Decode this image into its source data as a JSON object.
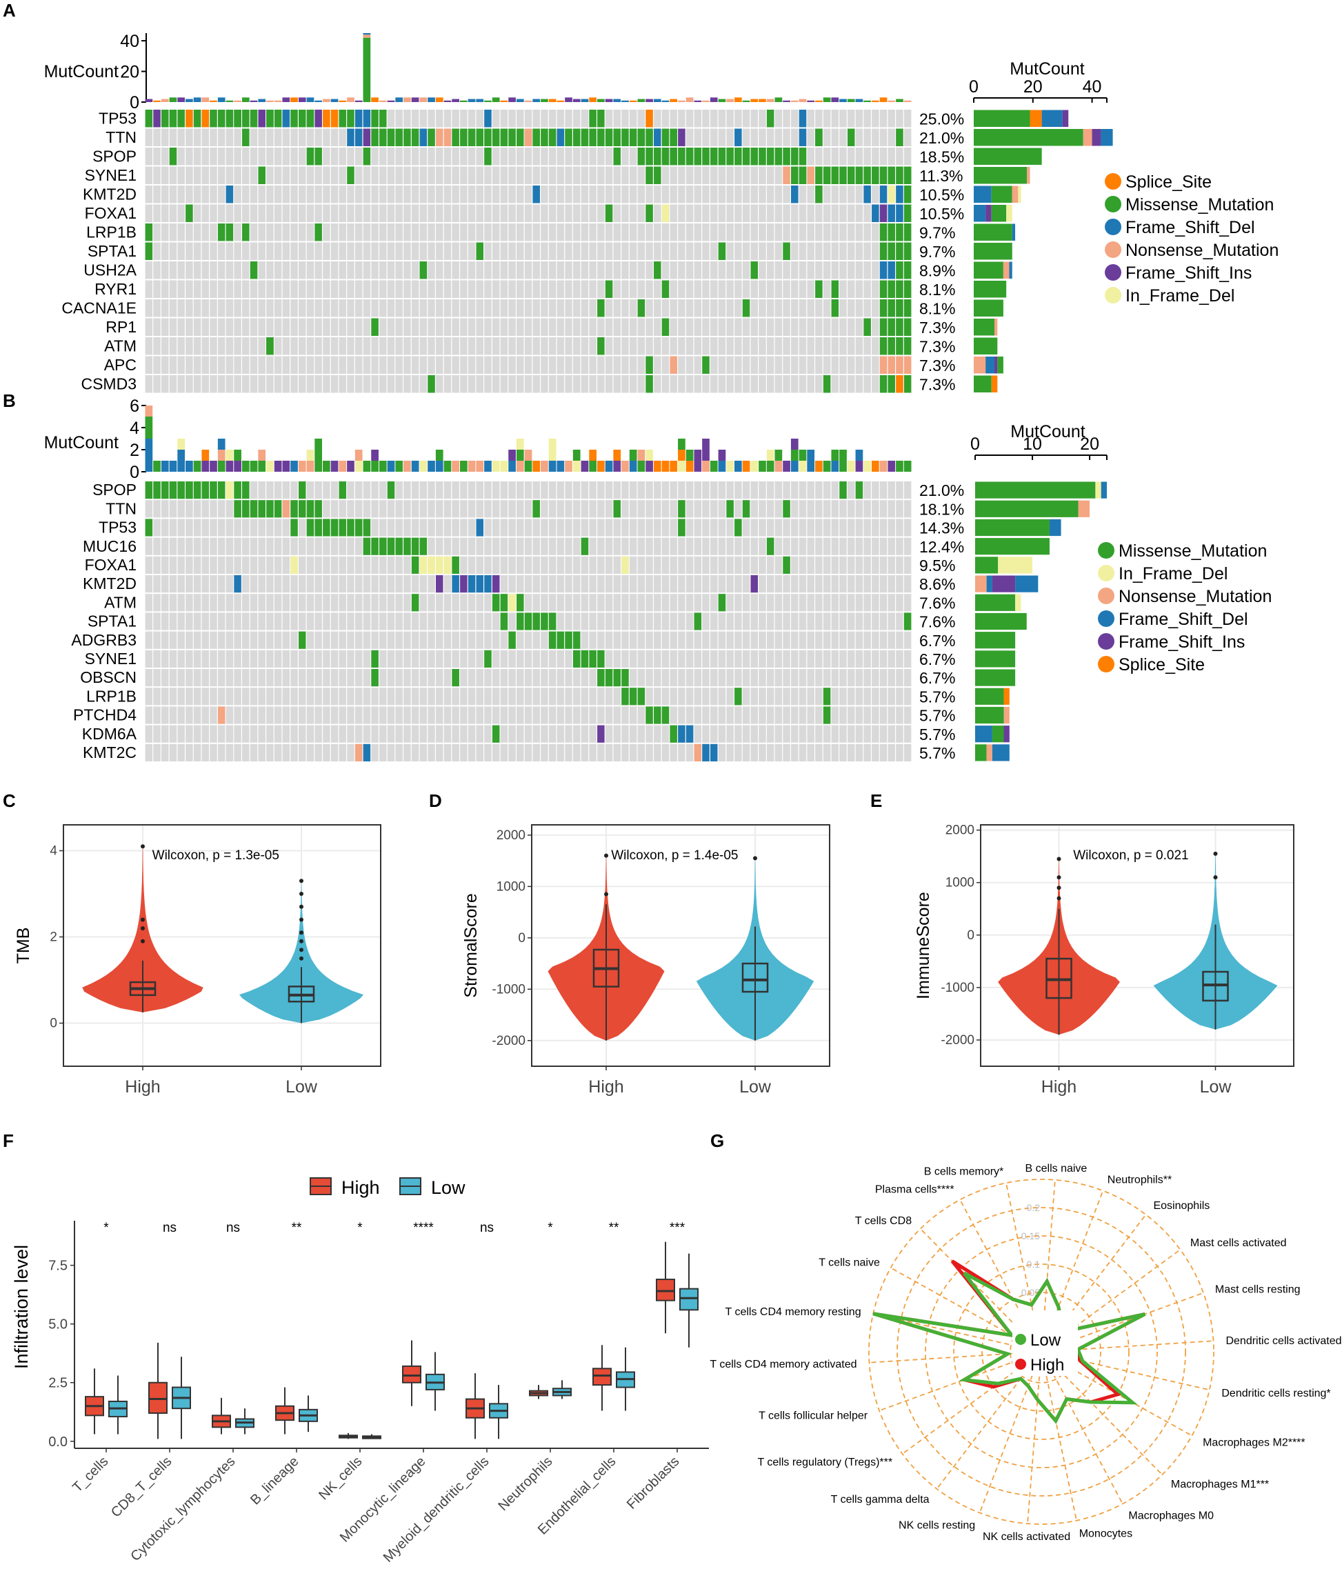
{
  "colors": {
    "Missense_Mutation": "#33a02c",
    "Splice_Site": "#ff7f00",
    "Frame_Shift_Del": "#1f78b4",
    "Nonsense_Mutation": "#f4a582",
    "Frame_Shift_Ins": "#6a3d9a",
    "In_Frame_Del": "#f0f0a0",
    "grid": "#d9d9d9",
    "high": "#e64b35",
    "low": "#4db6d0",
    "radarLow": "#45b035",
    "radarHigh": "#e41a1c",
    "radarGrid": "#f0a040"
  },
  "panel_labels": [
    "A",
    "B",
    "C",
    "D",
    "E",
    "F",
    "G"
  ],
  "chart_data": [
    {
      "id": "A",
      "type": "oncoplot",
      "ylabel": "MutCount",
      "yticks": [
        "40",
        "20",
        "0"
      ],
      "ymax": 45,
      "side_title": "MutCount",
      "side_ticks": [
        "0",
        "20",
        "40"
      ],
      "side_max": 45,
      "n_samples": 95,
      "genes": [
        "TP53",
        "TTN",
        "SPOP",
        "SYNE1",
        "KMT2D",
        "FOXA1",
        "LRP1B",
        "SPTA1",
        "USH2A",
        "RYR1",
        "CACNA1E",
        "RP1",
        "ATM",
        "APC",
        "CSMD3"
      ],
      "percents": [
        "25.0%",
        "21.0%",
        "18.5%",
        "11.3%",
        "10.5%",
        "10.5%",
        "9.7%",
        "9.7%",
        "8.9%",
        "8.1%",
        "8.1%",
        "7.3%",
        "7.3%",
        "7.3%",
        "7.3%"
      ],
      "side_counts": [
        [
          [
            "Missense_Mutation",
            19
          ],
          [
            "Splice_Site",
            4
          ],
          [
            "Frame_Shift_Del",
            7
          ],
          [
            "Frame_Shift_Ins",
            2
          ]
        ],
        [
          [
            "Missense_Mutation",
            37
          ],
          [
            "Nonsense_Mutation",
            3
          ],
          [
            "Frame_Shift_Ins",
            3
          ],
          [
            "Frame_Shift_Del",
            4
          ]
        ],
        [
          [
            "Missense_Mutation",
            23
          ]
        ],
        [
          [
            "Missense_Mutation",
            18
          ],
          [
            "Nonsense_Mutation",
            1
          ]
        ],
        [
          [
            "Frame_Shift_Del",
            6
          ],
          [
            "Missense_Mutation",
            7
          ],
          [
            "Nonsense_Mutation",
            2
          ],
          [
            "In_Frame_Del",
            1
          ]
        ],
        [
          [
            "Frame_Shift_Del",
            4
          ],
          [
            "Frame_Shift_Ins",
            2
          ],
          [
            "Missense_Mutation",
            5
          ],
          [
            "In_Frame_Del",
            2
          ]
        ],
        [
          [
            "Missense_Mutation",
            13
          ],
          [
            "Frame_Shift_Del",
            1
          ]
        ],
        [
          [
            "Missense_Mutation",
            13
          ]
        ],
        [
          [
            "Missense_Mutation",
            10
          ],
          [
            "Nonsense_Mutation",
            2
          ],
          [
            "Frame_Shift_Del",
            1
          ]
        ],
        [
          [
            "Missense_Mutation",
            11
          ]
        ],
        [
          [
            "Missense_Mutation",
            10
          ]
        ],
        [
          [
            "Missense_Mutation",
            7
          ],
          [
            "Nonsense_Mutation",
            1
          ]
        ],
        [
          [
            "Missense_Mutation",
            8
          ]
        ],
        [
          [
            "Nonsense_Mutation",
            4
          ],
          [
            "Frame_Shift_Del",
            3
          ],
          [
            "Frame_Shift_Ins",
            1
          ],
          [
            "Missense_Mutation",
            2
          ]
        ],
        [
          [
            "Missense_Mutation",
            6
          ],
          [
            "Splice_Site",
            2
          ]
        ]
      ],
      "legend": [
        "Splice_Site",
        "Missense_Mutation",
        "Frame_Shift_Del",
        "Nonsense_Mutation",
        "Frame_Shift_Ins",
        "In_Frame_Del"
      ]
    },
    {
      "id": "B",
      "type": "oncoplot",
      "ylabel": "MutCount",
      "yticks": [
        "6",
        "4",
        "2",
        "0"
      ],
      "ymax": 6,
      "side_title": "MutCount",
      "side_ticks": [
        "0",
        "10",
        "20"
      ],
      "side_max": 23,
      "n_samples": 95,
      "genes": [
        "SPOP",
        "TTN",
        "TP53",
        "MUC16",
        "FOXA1",
        "KMT2D",
        "ATM",
        "SPTA1",
        "ADGRB3",
        "SYNE1",
        "OBSCN",
        "LRP1B",
        "PTCHD4",
        "KDM6A",
        "KMT2C"
      ],
      "percents": [
        "21.0%",
        "18.1%",
        "14.3%",
        "12.4%",
        "9.5%",
        "8.6%",
        "7.6%",
        "7.6%",
        "6.7%",
        "6.7%",
        "6.7%",
        "5.7%",
        "5.7%",
        "5.7%",
        "5.7%"
      ],
      "side_counts": [
        [
          [
            "Missense_Mutation",
            21
          ],
          [
            "In_Frame_Del",
            1
          ],
          [
            "Frame_Shift_Del",
            1
          ]
        ],
        [
          [
            "Missense_Mutation",
            18
          ],
          [
            "Nonsense_Mutation",
            2
          ]
        ],
        [
          [
            "Missense_Mutation",
            13
          ],
          [
            "Frame_Shift_Del",
            2
          ]
        ],
        [
          [
            "Missense_Mutation",
            13
          ]
        ],
        [
          [
            "Missense_Mutation",
            4
          ],
          [
            "In_Frame_Del",
            6
          ]
        ],
        [
          [
            "Nonsense_Mutation",
            2
          ],
          [
            "Frame_Shift_Del",
            1
          ],
          [
            "Frame_Shift_Ins",
            4
          ],
          [
            "Frame_Shift_Del",
            4
          ]
        ],
        [
          [
            "Missense_Mutation",
            7
          ],
          [
            "In_Frame_Del",
            1
          ]
        ],
        [
          [
            "Missense_Mutation",
            9
          ]
        ],
        [
          [
            "Missense_Mutation",
            7
          ]
        ],
        [
          [
            "Missense_Mutation",
            7
          ]
        ],
        [
          [
            "Missense_Mutation",
            7
          ]
        ],
        [
          [
            "Missense_Mutation",
            5
          ],
          [
            "Splice_Site",
            1
          ]
        ],
        [
          [
            "Missense_Mutation",
            5
          ],
          [
            "Nonsense_Mutation",
            1
          ]
        ],
        [
          [
            "Frame_Shift_Del",
            3
          ],
          [
            "Missense_Mutation",
            2
          ],
          [
            "Frame_Shift_Ins",
            1
          ]
        ],
        [
          [
            "Missense_Mutation",
            2
          ],
          [
            "Nonsense_Mutation",
            1
          ],
          [
            "Frame_Shift_Del",
            3
          ]
        ]
      ],
      "legend": [
        "Missense_Mutation",
        "In_Frame_Del",
        "Nonsense_Mutation",
        "Frame_Shift_Del",
        "Frame_Shift_Ins",
        "Splice_Site"
      ]
    },
    {
      "id": "C",
      "type": "violin",
      "ylabel": "TMB",
      "ylim": [
        -1,
        4.6
      ],
      "yticks": [
        0,
        2,
        4
      ],
      "categories": [
        "High",
        "Low"
      ],
      "annotation": "Wilcoxon, p = 1.3e-05",
      "groups": [
        {
          "q1": 0.65,
          "median": 0.8,
          "q3": 0.95,
          "whisker_low": 0.25,
          "whisker_high": 1.45,
          "max": 4.1,
          "outliers": [
            1.9,
            2.2,
            2.4,
            4.1
          ]
        },
        {
          "q1": 0.5,
          "median": 0.65,
          "q3": 0.85,
          "whisker_low": 0.0,
          "whisker_high": 1.3,
          "max": 3.3,
          "outliers": [
            1.5,
            1.7,
            1.9,
            2.1,
            2.4,
            2.7,
            3.0,
            3.3
          ]
        }
      ]
    },
    {
      "id": "D",
      "type": "violin",
      "ylabel": "StromalScore",
      "ylim": [
        -2500,
        2200
      ],
      "yticks": [
        -2000,
        -1000,
        0,
        1000,
        2000
      ],
      "categories": [
        "High",
        "Low"
      ],
      "annotation": "Wilcoxon, p = 1.4e-05",
      "groups": [
        {
          "q1": -950,
          "median": -600,
          "q3": -230,
          "whisker_low": -2000,
          "whisker_high": 650,
          "max": 1600,
          "outliers": [
            850,
            1600
          ]
        },
        {
          "q1": -1050,
          "median": -820,
          "q3": -500,
          "whisker_low": -2000,
          "whisker_high": 220,
          "max": 1550,
          "outliers": [
            1550
          ]
        }
      ]
    },
    {
      "id": "E",
      "type": "violin",
      "ylabel": "ImmuneScore",
      "ylim": [
        -2500,
        2100
      ],
      "yticks": [
        -2000,
        -1000,
        0,
        1000,
        2000
      ],
      "categories": [
        "High",
        "Low"
      ],
      "annotation": "Wilcoxon, p = 0.021",
      "groups": [
        {
          "q1": -1200,
          "median": -850,
          "q3": -450,
          "whisker_low": -1900,
          "whisker_high": 500,
          "max": 1450,
          "outliers": [
            700,
            900,
            1100,
            1450
          ]
        },
        {
          "q1": -1250,
          "median": -950,
          "q3": -700,
          "whisker_low": -1800,
          "whisker_high": 200,
          "max": 1550,
          "outliers": [
            1100,
            1550
          ]
        }
      ]
    },
    {
      "id": "F",
      "type": "boxplot",
      "ylabel": "Infiltration level",
      "ylim": [
        -0.3,
        9.4
      ],
      "yticks": [
        0.0,
        2.5,
        5.0,
        7.5
      ],
      "ytick_labels": [
        "0.0",
        "2.5",
        "5.0",
        "7.5"
      ],
      "legend": [
        "High",
        "Low"
      ],
      "categories": [
        "T_cells",
        "CD8_T_cells",
        "Cytotoxic_lymphocytes",
        "B_lineage",
        "NK_cells",
        "Monocytic_lineage",
        "Myeloid_dendritic_cells",
        "Neutrophils",
        "Endothelial_cells",
        "Fibroblasts"
      ],
      "significance": [
        "*",
        "ns",
        "ns",
        "**",
        "*",
        "****",
        "ns",
        "*",
        "**",
        "***"
      ],
      "series": [
        {
          "name": "High",
          "boxes": [
            [
              0.3,
              1.1,
              1.5,
              1.9,
              3.1
            ],
            [
              0.1,
              1.2,
              1.8,
              2.5,
              4.2
            ],
            [
              0.3,
              0.6,
              0.85,
              1.1,
              1.85
            ],
            [
              0.3,
              0.9,
              1.2,
              1.5,
              2.3
            ],
            [
              0.1,
              0.15,
              0.2,
              0.25,
              0.35
            ],
            [
              1.5,
              2.5,
              2.8,
              3.2,
              4.3
            ],
            [
              0.1,
              1.0,
              1.4,
              1.8,
              2.9
            ],
            [
              1.8,
              1.95,
              2.05,
              2.15,
              2.4
            ],
            [
              1.3,
              2.4,
              2.8,
              3.1,
              4.1
            ],
            [
              4.6,
              6.0,
              6.4,
              6.9,
              8.5
            ]
          ]
        },
        {
          "name": "Low",
          "boxes": [
            [
              0.3,
              1.05,
              1.4,
              1.7,
              2.8
            ],
            [
              0.1,
              1.4,
              1.85,
              2.3,
              3.6
            ],
            [
              0.3,
              0.6,
              0.8,
              0.95,
              1.4
            ],
            [
              0.4,
              0.85,
              1.1,
              1.35,
              1.95
            ],
            [
              0.1,
              0.12,
              0.18,
              0.22,
              0.3
            ],
            [
              1.3,
              2.2,
              2.5,
              2.85,
              3.8
            ],
            [
              0.1,
              1.0,
              1.3,
              1.6,
              2.4
            ],
            [
              1.8,
              1.95,
              2.1,
              2.25,
              2.6
            ],
            [
              1.3,
              2.3,
              2.65,
              2.95,
              4.0
            ],
            [
              4.0,
              5.6,
              6.1,
              6.5,
              8.0
            ]
          ]
        }
      ]
    },
    {
      "id": "G",
      "type": "radar",
      "rings": [
        0.05,
        0.1,
        0.15,
        0.2
      ],
      "ring_labels": [
        "0.05",
        "0.1",
        "0.15",
        "0.2"
      ],
      "rmax": 0.25,
      "legend": [
        "Low",
        "High"
      ],
      "axes": [
        "B cells naive",
        "Neutrophils**",
        "Eosinophils",
        "Mast cells activated",
        "Mast cells resting",
        "Dendritic cells activated",
        "Dendritic cells resting*",
        "Macrophages M2****",
        "Macrophages M1***",
        "Macrophages M0",
        "Monocytes",
        "NK cells activated",
        "NK cells resting",
        "T cells gamma delta",
        "T cells regulatory (Tregs)***",
        "T cells follicular helper",
        "T cells CD4 memory activated",
        "T cells CD4 memory resting",
        "T cells naive",
        "T cells CD8",
        "Plasma cells****",
        "B cells memory*"
      ],
      "series": [
        {
          "name": "Low",
          "values": [
            0.07,
            0.03,
            0.005,
            0.01,
            0.14,
            0.01,
            0.02,
            0.13,
            0.07,
            0.04,
            0.07,
            0.03,
            0.01,
            0.005,
            0.04,
            0.09,
            0.005,
            0.25,
            0.005,
            0.14,
            0.05,
            0.03
          ]
        },
        {
          "name": "High",
          "values": [
            0.07,
            0.03,
            0.005,
            0.01,
            0.14,
            0.01,
            0.015,
            0.1,
            0.07,
            0.04,
            0.07,
            0.03,
            0.01,
            0.005,
            0.05,
            0.09,
            0.005,
            0.25,
            0.005,
            0.17,
            0.05,
            0.03
          ]
        }
      ]
    }
  ]
}
